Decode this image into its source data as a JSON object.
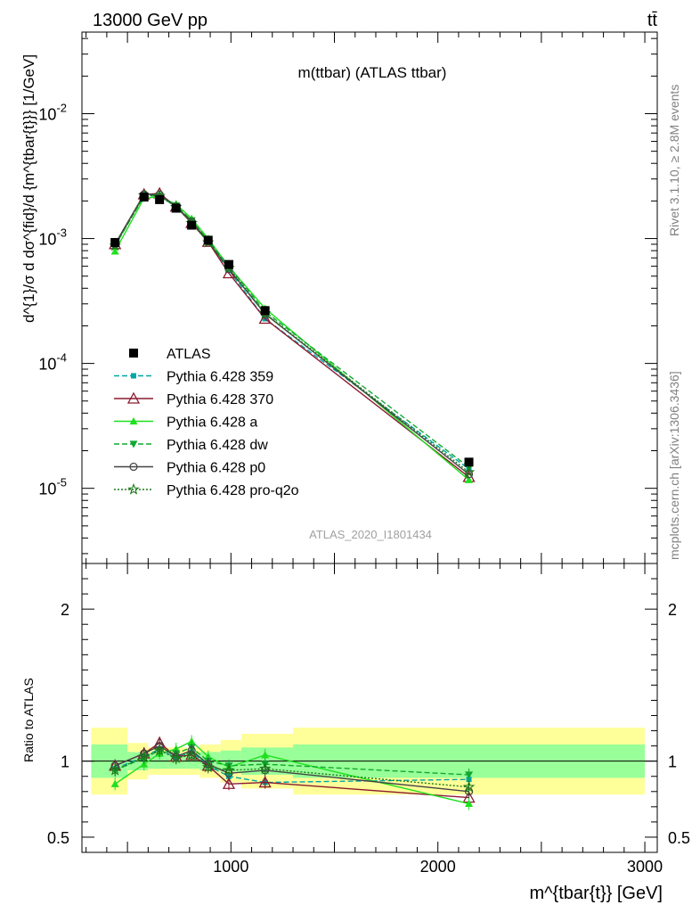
{
  "header": {
    "left": "13000 GeV pp",
    "right": "tt̄"
  },
  "side": {
    "rivet": "Rivet 3.1.10, ≥ 2.8M events",
    "mcplots": "mcplots.cern.ch [arXiv:1306.3436]"
  },
  "chart_data": {
    "type": "line",
    "title": "m(ttbar) (ATLAS ttbar)",
    "analysis_id": "ATLAS_2020_I1801434",
    "xlabel": "m^{tbar{t}} [GeV]",
    "ylabel": "d^{1}/σ d dσ^{fid}/d {m^{tbar{t}}} [1/GeV]",
    "ratio_ylabel": "Ratio to ATLAS",
    "xlim": [
      280,
      3060
    ],
    "ylim": [
      2.5e-06,
      0.045
    ],
    "yscale": "log",
    "ratio_ylim": [
      0.4,
      2.3
    ],
    "x_ticks": [
      1000,
      2000,
      3000
    ],
    "x_tick_labels": [
      "1000",
      "2000",
      "3000"
    ],
    "y_ticks": [
      1e-05,
      0.0001,
      0.001,
      0.01
    ],
    "y_tick_labels": [
      "10^-5",
      "10^-4",
      "10^-3",
      "10^-2"
    ],
    "ratio_ticks": [
      0.5,
      1,
      2
    ],
    "ratio_tick_labels": [
      "0.5",
      "1",
      "2"
    ],
    "legend_position": "middle-left",
    "bins": [
      {
        "lo": 325,
        "hi": 500
      },
      {
        "lo": 500,
        "hi": 600
      },
      {
        "lo": 600,
        "hi": 700
      },
      {
        "lo": 700,
        "hi": 780
      },
      {
        "lo": 780,
        "hi": 850
      },
      {
        "lo": 850,
        "hi": 950
      },
      {
        "lo": 950,
        "hi": 1050
      },
      {
        "lo": 1050,
        "hi": 1300
      },
      {
        "lo": 1300,
        "hi": 3000
      }
    ],
    "x": [
      440,
      580,
      655,
      735,
      810,
      890,
      990,
      1165,
      2150
    ],
    "data": {
      "name": "ATLAS",
      "values": [
        0.00093,
        0.00215,
        0.00205,
        0.00175,
        0.00128,
        0.00097,
        0.00062,
        0.000265,
        1.62e-05
      ]
    },
    "band_green": [
      0.11,
      0.06,
      0.05,
      0.05,
      0.05,
      0.06,
      0.07,
      0.09,
      0.11
    ],
    "band_yellow": [
      0.22,
      0.12,
      0.09,
      0.09,
      0.09,
      0.11,
      0.14,
      0.18,
      0.22
    ],
    "series": [
      {
        "name": "Pythia 6.428 359",
        "color": "#00a6a6",
        "dash": "6,3",
        "marker": "square",
        "ratio": [
          0.95,
          1.03,
          1.08,
          1.02,
          1.06,
          0.97,
          0.9,
          0.86,
          0.88
        ]
      },
      {
        "name": "Pythia 6.428 370",
        "color": "#8b1a2e",
        "dash": "",
        "marker": "triangle-open",
        "ratio": [
          0.97,
          1.05,
          1.12,
          1.03,
          1.04,
          0.97,
          0.85,
          0.86,
          0.76
        ]
      },
      {
        "name": "Pythia 6.428 a",
        "color": "#1ee01e",
        "dash": "",
        "marker": "triangle",
        "ratio": [
          0.85,
          0.98,
          1.05,
          1.08,
          1.13,
          1.03,
          0.96,
          1.04,
          0.72
        ]
      },
      {
        "name": "Pythia 6.428 dw",
        "color": "#10a830",
        "dash": "6,3",
        "marker": "triangle-down",
        "ratio": [
          0.94,
          1.02,
          1.07,
          1.05,
          1.09,
          1.0,
          0.97,
          0.98,
          0.91
        ]
      },
      {
        "name": "Pythia 6.428 p0",
        "color": "#444444",
        "dash": "",
        "marker": "circle-open",
        "ratio": [
          0.97,
          1.05,
          1.1,
          1.03,
          1.07,
          0.98,
          0.92,
          0.94,
          0.8
        ]
      },
      {
        "name": "Pythia 6.428 pro-q2o",
        "color": "#1a7a1a",
        "dash": "2,2",
        "marker": "star",
        "ratio": [
          0.94,
          1.03,
          1.07,
          1.02,
          1.04,
          0.96,
          0.94,
          0.95,
          0.83
        ]
      }
    ]
  }
}
